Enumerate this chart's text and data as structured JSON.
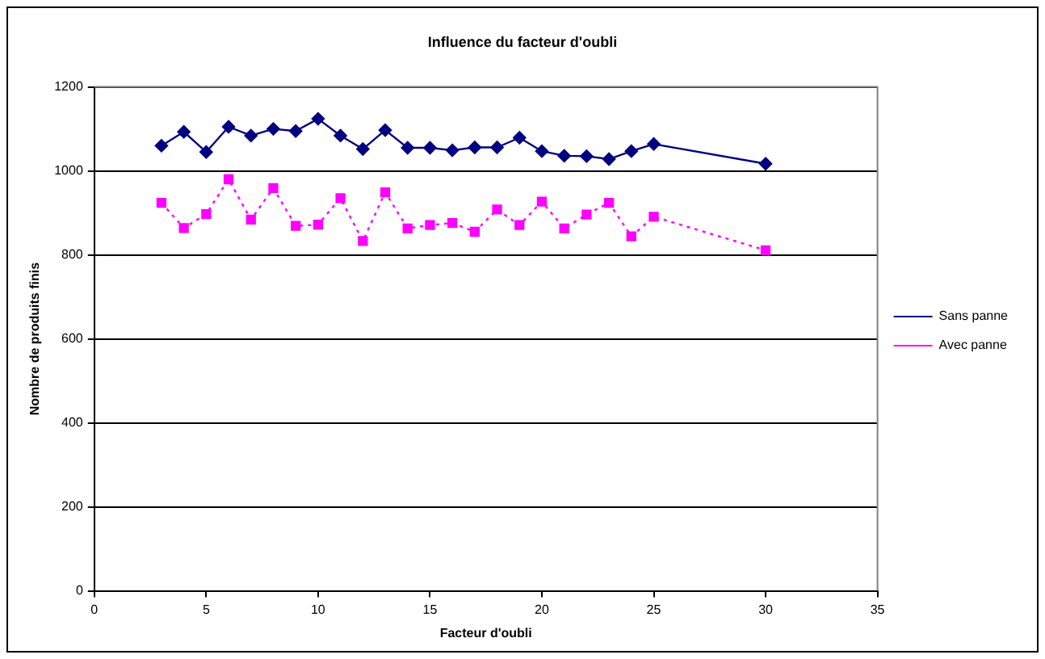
{
  "chart_data": {
    "type": "line",
    "title": "Influence du facteur d'oubli",
    "xlabel": "Facteur d'oubli",
    "ylabel": "Nombre de produits finis",
    "x": [
      3,
      4,
      5,
      6,
      7,
      8,
      9,
      10,
      11,
      12,
      13,
      14,
      15,
      16,
      17,
      18,
      19,
      20,
      21,
      22,
      23,
      24,
      25,
      30
    ],
    "series": [
      {
        "name": "Sans panne",
        "color": "#000080",
        "marker": "diamond",
        "line_style": "solid",
        "values": [
          1060,
          1093,
          1045,
          1105,
          1084,
          1100,
          1095,
          1124,
          1084,
          1052,
          1097,
          1055,
          1055,
          1049,
          1056,
          1056,
          1079,
          1047,
          1036,
          1035,
          1028,
          1047,
          1064,
          1017
        ]
      },
      {
        "name": "Avec panne",
        "color": "#ff00ff",
        "marker": "square",
        "line_style": "dotted",
        "values": [
          924,
          864,
          897,
          980,
          884,
          959,
          869,
          872,
          935,
          833,
          949,
          863,
          871,
          876,
          855,
          908,
          871,
          927,
          863,
          896,
          924,
          844,
          891,
          811
        ]
      }
    ],
    "xlim": [
      0,
      35
    ],
    "xticks": [
      0,
      5,
      10,
      15,
      20,
      25,
      30,
      35
    ],
    "ylim": [
      0,
      1200
    ],
    "yticks": [
      0,
      200,
      400,
      600,
      800,
      1000,
      1200
    ],
    "grid": "y",
    "legend": "right"
  }
}
